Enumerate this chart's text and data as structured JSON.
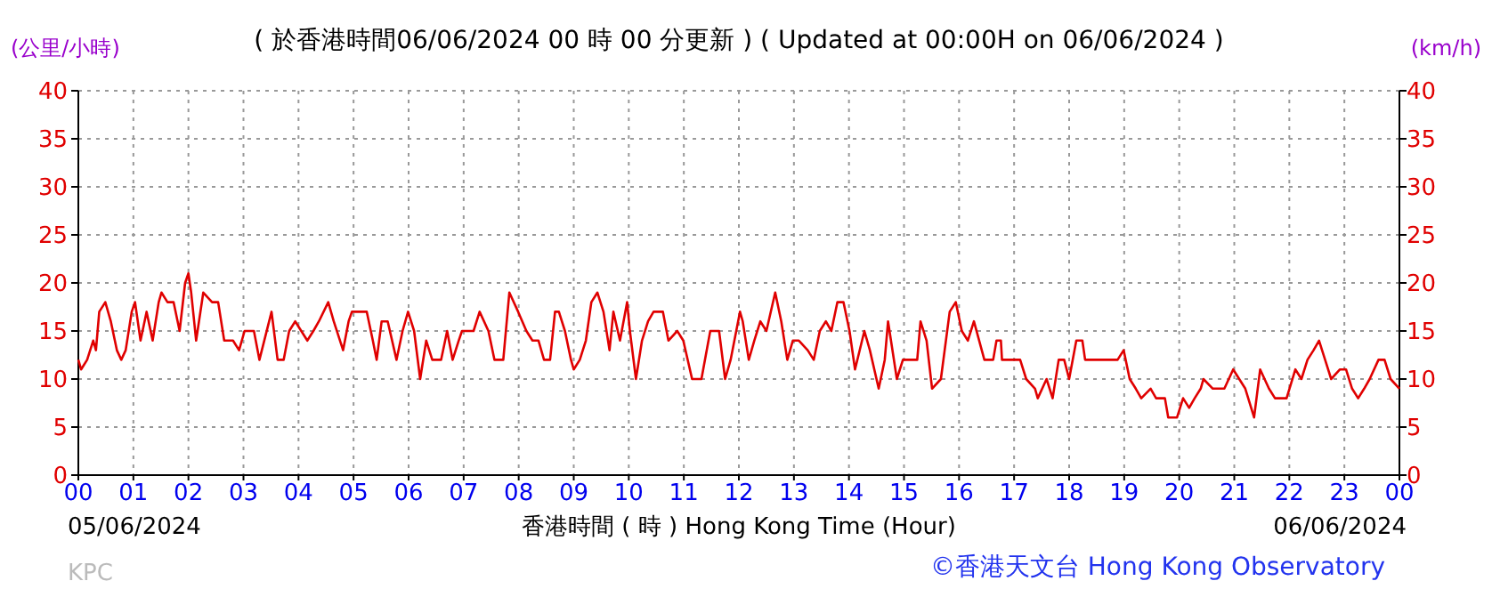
{
  "chart_data": {
    "type": "line",
    "title": "( 於香港時間06/06/2024 00 時 00 分更新 ) ( Updated at 00:00H on 06/06/2024 )",
    "xlabel": "香港時間 ( 時 ) Hong Kong Time (Hour)",
    "ylabel": "(公里/小時)",
    "y2label": "(km/h)",
    "xlim": [
      0,
      24
    ],
    "xticks": [
      {
        "value": 0,
        "label": "00"
      },
      {
        "value": 1,
        "label": "01"
      },
      {
        "value": 2,
        "label": "02"
      },
      {
        "value": 3,
        "label": "03"
      },
      {
        "value": 4,
        "label": "04"
      },
      {
        "value": 5,
        "label": "05"
      },
      {
        "value": 6,
        "label": "06"
      },
      {
        "value": 7,
        "label": "07"
      },
      {
        "value": 8,
        "label": "08"
      },
      {
        "value": 9,
        "label": "09"
      },
      {
        "value": 10,
        "label": "10"
      },
      {
        "value": 11,
        "label": "11"
      },
      {
        "value": 12,
        "label": "12"
      },
      {
        "value": 13,
        "label": "13"
      },
      {
        "value": 14,
        "label": "14"
      },
      {
        "value": 15,
        "label": "15"
      },
      {
        "value": 16,
        "label": "16"
      },
      {
        "value": 17,
        "label": "17"
      },
      {
        "value": 18,
        "label": "18"
      },
      {
        "value": 19,
        "label": "19"
      },
      {
        "value": 20,
        "label": "20"
      },
      {
        "value": 21,
        "label": "21"
      },
      {
        "value": 22,
        "label": "22"
      },
      {
        "value": 23,
        "label": "23"
      },
      {
        "value": 24,
        "label": "00"
      }
    ],
    "ylim": [
      0,
      40
    ],
    "yticks": [
      0,
      5,
      10,
      15,
      20,
      25,
      30,
      35,
      40
    ],
    "y2lim": [
      0,
      40
    ],
    "y2ticks": [
      0,
      5,
      10,
      15,
      20,
      25,
      30,
      35,
      40
    ],
    "grid": true,
    "line_style": "solid",
    "annotations": [
      "05/06/2024",
      "06/06/2024",
      "KPC",
      "©香港天文台 Hong Kong Observatory"
    ],
    "series": [
      {
        "color": "#e00000",
        "x": [
          0,
          0.05,
          0.16,
          0.27,
          0.32,
          0.38,
          0.49,
          0.59,
          0.7,
          0.78,
          0.86,
          0.97,
          1.03,
          1.13,
          1.24,
          1.35,
          1.46,
          1.51,
          1.62,
          1.73,
          1.84,
          1.94,
          2.0,
          2.05,
          2.14,
          2.27,
          2.43,
          2.54,
          2.65,
          2.81,
          2.92,
          3.02,
          3.19,
          3.29,
          3.51,
          3.62,
          3.73,
          3.83,
          3.94,
          4.05,
          4.16,
          4.27,
          4.37,
          4.54,
          4.64,
          4.81,
          4.91,
          4.97,
          5.24,
          5.35,
          5.42,
          5.51,
          5.62,
          5.78,
          5.89,
          5.99,
          6.1,
          6.21,
          6.32,
          6.43,
          6.59,
          6.7,
          6.8,
          6.91,
          6.97,
          7.18,
          7.29,
          7.45,
          7.56,
          7.72,
          7.83,
          7.99,
          8.14,
          8.25,
          8.36,
          8.46,
          8.57,
          8.66,
          8.73,
          8.84,
          8.95,
          9.0,
          9.11,
          9.22,
          9.32,
          9.43,
          9.54,
          9.65,
          9.72,
          9.84,
          9.97,
          10.02,
          10.13,
          10.24,
          10.35,
          10.45,
          10.62,
          10.72,
          10.88,
          10.99,
          11.15,
          11.32,
          11.48,
          11.64,
          11.75,
          11.85,
          12.02,
          12.07,
          12.18,
          12.28,
          12.39,
          12.5,
          12.66,
          12.77,
          12.88,
          12.98,
          13.09,
          13.25,
          13.36,
          13.47,
          13.58,
          13.68,
          13.79,
          13.9,
          14.01,
          14.11,
          14.28,
          14.38,
          14.54,
          14.65,
          14.71,
          14.87,
          14.98,
          15.14,
          15.24,
          15.3,
          15.41,
          15.51,
          15.67,
          15.83,
          15.94,
          16.05,
          16.16,
          16.27,
          16.46,
          16.62,
          16.68,
          16.76,
          16.78,
          17.11,
          17.22,
          17.38,
          17.43,
          17.59,
          17.7,
          17.81,
          17.91,
          18.0,
          18.13,
          18.24,
          18.29,
          18.88,
          18.99,
          19.1,
          19.21,
          19.31,
          19.48,
          19.58,
          19.74,
          19.8,
          19.96,
          20.07,
          20.18,
          20.28,
          20.39,
          20.44,
          20.61,
          20.82,
          20.98,
          21.09,
          21.2,
          21.36,
          21.47,
          21.63,
          21.74,
          21.95,
          22.11,
          22.22,
          22.33,
          22.44,
          22.54,
          22.65,
          22.76,
          22.92,
          23.03,
          23.14,
          23.25,
          23.36,
          23.46,
          23.62,
          23.73,
          23.84,
          24.0
        ],
        "values": [
          12,
          11,
          12,
          14,
          13,
          17,
          18,
          16,
          13,
          12,
          13,
          17,
          18,
          14,
          17,
          14,
          18,
          19,
          18,
          18,
          15,
          20,
          21,
          19,
          14,
          19,
          18,
          18,
          14,
          14,
          13,
          15,
          15,
          12,
          17,
          12,
          12,
          15,
          16,
          15,
          14,
          15,
          16,
          18,
          16,
          13,
          16,
          17,
          17,
          14,
          12,
          16,
          16,
          12,
          15,
          17,
          15,
          10,
          14,
          12,
          12,
          15,
          12,
          14,
          15,
          15,
          17,
          15,
          12,
          12,
          19,
          17,
          15,
          14,
          14,
          12,
          12,
          17,
          17,
          15,
          12,
          11,
          12,
          14,
          18,
          19,
          17,
          13,
          17,
          14,
          18,
          15,
          10,
          14,
          16,
          17,
          17,
          14,
          15,
          14,
          10,
          10,
          15,
          15,
          10,
          12,
          17,
          16,
          12,
          14,
          16,
          15,
          19,
          16,
          12,
          14,
          14,
          13,
          12,
          15,
          16,
          15,
          18,
          18,
          15,
          11,
          15,
          13,
          9,
          12,
          16,
          10,
          12,
          12,
          12,
          16,
          14,
          9,
          10,
          17,
          18,
          15,
          14,
          16,
          12,
          12,
          14,
          14,
          12,
          12,
          10,
          9,
          8,
          10,
          8,
          12,
          12,
          10,
          14,
          14,
          12,
          12,
          13,
          10,
          9,
          8,
          9,
          8,
          8,
          6,
          6,
          8,
          7,
          8,
          9,
          10,
          9,
          9,
          11,
          10,
          9,
          6,
          11,
          9,
          8,
          8,
          11,
          10,
          12,
          13,
          14,
          12,
          10,
          11,
          11,
          9,
          8,
          9,
          10,
          12,
          12,
          10,
          9
        ]
      }
    ]
  }
}
